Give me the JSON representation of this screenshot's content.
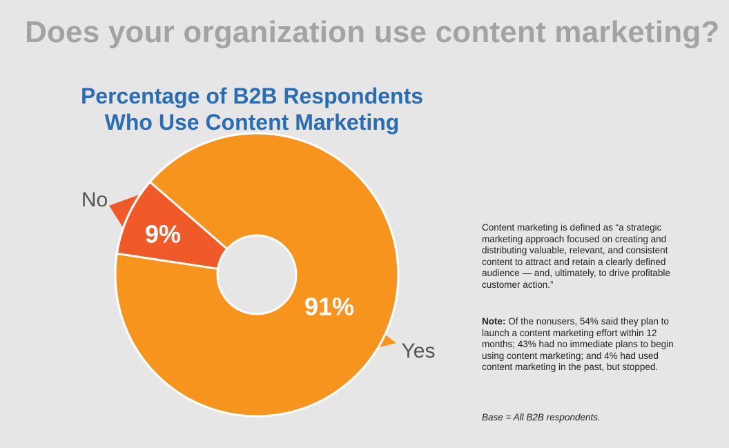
{
  "heading": "Does your organization use content marketing?",
  "chart_data": {
    "type": "pie",
    "title": "Percentage of B2B Respondents Who Use Content Marketing",
    "categories": [
      "No",
      "Yes"
    ],
    "values": [
      9,
      91
    ],
    "value_labels": [
      "9%",
      "91%"
    ],
    "colors": [
      "#f05a28",
      "#f7941d"
    ]
  },
  "definition": "Content marketing is defined as “a strategic marketing approach focused on creating and distributing valuable, relevant, and consistent content to attract and retain a clearly defined audience — and, ultimately, to drive profitable customer action.”",
  "note": {
    "label": "Note:",
    "text": "Of the nonusers, 54% said they plan to launch a content marketing effort within 12 months; 43% had no immediate plans to begin using content marketing; and 4% had used content marketing in the past, but stopped."
  },
  "base": "Base = All B2B respondents."
}
